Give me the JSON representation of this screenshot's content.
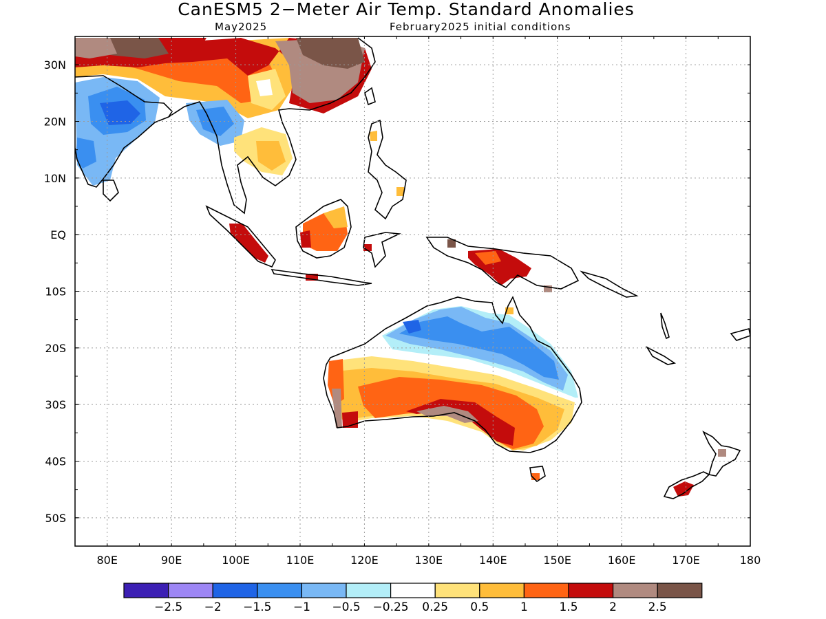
{
  "title": "CanESM5 2−Meter Air Temp. Standard Anomalies",
  "valid_month": "May2025",
  "initial_conditions": "February2025 initial conditions",
  "map": {
    "lon_range": [
      75,
      180
    ],
    "lat_range": [
      -55,
      35
    ],
    "y_tick_labels": [
      "30N",
      "20N",
      "10N",
      "EQ",
      "10S",
      "20S",
      "30S",
      "40S",
      "50S"
    ],
    "x_tick_labels": [
      "80E",
      "90E",
      "100E",
      "110E",
      "120E",
      "130E",
      "140E",
      "150E",
      "160E",
      "170E",
      "180"
    ],
    "grid": "dotted"
  },
  "colorbar": {
    "colors": [
      "#3c1fb4",
      "#9d86f5",
      "#1f64e6",
      "#3a8ff0",
      "#79b8f5",
      "#b3eef8",
      "#ffffff",
      "#ffe27a",
      "#ffbd3a",
      "#ff6414",
      "#c40c0c",
      "#b08a80",
      "#7a5548"
    ],
    "labels": [
      "−2.5",
      "−2",
      "−1.5",
      "−1",
      "−0.5",
      "−0.25",
      "0.25",
      "0.5",
      "1",
      "1.5",
      "2",
      "2.5"
    ]
  }
}
